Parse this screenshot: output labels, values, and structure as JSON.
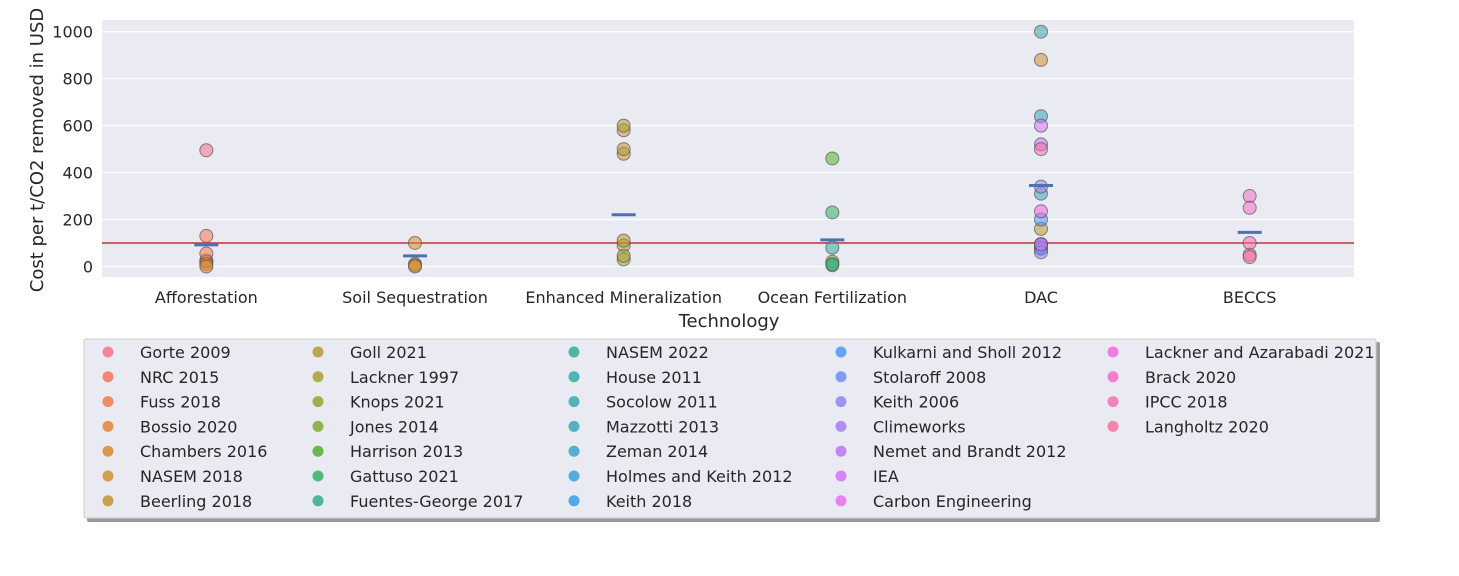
{
  "chart_data": {
    "type": "scatter",
    "title": "",
    "xlabel": "Technology",
    "ylabel": "Cost per t/CO2 removed in USD",
    "ylim": [
      -45,
      1050
    ],
    "yticks": [
      0,
      200,
      400,
      600,
      800,
      1000
    ],
    "grid": true,
    "legend_position": "bottom",
    "categories": [
      "Afforestation",
      "Soil Sequestration",
      "Enhanced Mineralization",
      "Ocean Fertilization",
      "DAC",
      "BECCS"
    ],
    "reference_line": {
      "y": 100,
      "color": "#c44e52"
    },
    "means": [
      {
        "category": "Afforestation",
        "value": 92
      },
      {
        "category": "Soil Sequestration",
        "value": 45
      },
      {
        "category": "Enhanced Mineralization",
        "value": 220
      },
      {
        "category": "Ocean Fertilization",
        "value": 113
      },
      {
        "category": "DAC",
        "value": 345
      },
      {
        "category": "BECCS",
        "value": 145
      }
    ],
    "mean_color": "#4c72b0",
    "series": [
      {
        "name": "Gorte 2009",
        "color": "#f77189",
        "points": [
          {
            "x": "Afforestation",
            "y": 495
          }
        ]
      },
      {
        "name": "NRC 2015",
        "color": "#f7745a",
        "points": [
          {
            "x": "Afforestation",
            "y": 130
          },
          {
            "x": "Afforestation",
            "y": 25
          }
        ]
      },
      {
        "name": "Fuss 2018",
        "color": "#f3794a",
        "points": [
          {
            "x": "Afforestation",
            "y": 20
          },
          {
            "x": "Afforestation",
            "y": 55
          }
        ]
      },
      {
        "name": "Bossio 2020",
        "color": "#e68332",
        "points": [
          {
            "x": "Afforestation",
            "y": 10
          },
          {
            "x": "Soil Sequestration",
            "y": 10
          }
        ]
      },
      {
        "name": "Chambers 2016",
        "color": "#db8a32",
        "points": [
          {
            "x": "Soil Sequestration",
            "y": 100
          },
          {
            "x": "Soil Sequestration",
            "y": 5
          }
        ]
      },
      {
        "name": "NASEM 2018",
        "color": "#cf9032",
        "points": [
          {
            "x": "Afforestation",
            "y": 0
          },
          {
            "x": "Soil Sequestration",
            "y": 0
          },
          {
            "x": "Enhanced Mineralization",
            "y": 580
          },
          {
            "x": "DAC",
            "y": 880
          }
        ]
      },
      {
        "name": "Beerling 2018",
        "color": "#c39532",
        "points": [
          {
            "x": "Enhanced Mineralization",
            "y": 480
          },
          {
            "x": "Enhanced Mineralization",
            "y": 90
          },
          {
            "x": "DAC",
            "y": 160
          }
        ]
      },
      {
        "name": "Goll 2021",
        "color": "#b69a31",
        "points": [
          {
            "x": "Enhanced Mineralization",
            "y": 500
          },
          {
            "x": "Enhanced Mineralization",
            "y": 110
          },
          {
            "x": "Enhanced Mineralization",
            "y": 30
          }
        ]
      },
      {
        "name": "Lackner 1997",
        "color": "#a8a031",
        "points": [
          {
            "x": "Enhanced Mineralization",
            "y": 600
          }
        ]
      },
      {
        "name": "Knops 2021",
        "color": "#97a531",
        "points": [
          {
            "x": "Enhanced Mineralization",
            "y": 45
          }
        ]
      },
      {
        "name": "Jones 2014",
        "color": "#7fab31",
        "points": [
          {
            "x": "Ocean Fertilization",
            "y": 20
          }
        ]
      },
      {
        "name": "Harrison 2013",
        "color": "#50b131",
        "points": [
          {
            "x": "Ocean Fertilization",
            "y": 460
          }
        ]
      },
      {
        "name": "Gattuso 2021",
        "color": "#32b166",
        "points": [
          {
            "x": "Ocean Fertilization",
            "y": 230
          },
          {
            "x": "Ocean Fertilization",
            "y": 5
          }
        ]
      },
      {
        "name": "Fuentes-George 2017",
        "color": "#34ae89",
        "points": [
          {
            "x": "Ocean Fertilization",
            "y": 10
          }
        ]
      },
      {
        "name": "NASEM 2022",
        "color": "#35ac9c",
        "points": [
          {
            "x": "Ocean Fertilization",
            "y": 80
          }
        ]
      },
      {
        "name": "House 2011",
        "color": "#36aaa8",
        "points": [
          {
            "x": "DAC",
            "y": 1000
          }
        ]
      },
      {
        "name": "Socolow 2011",
        "color": "#37a8b3",
        "points": [
          {
            "x": "DAC",
            "y": 640
          }
        ]
      },
      {
        "name": "Mazzotti 2013",
        "color": "#38a6be",
        "points": [
          {
            "x": "DAC",
            "y": 310
          }
        ]
      },
      {
        "name": "Zeman 2014",
        "color": "#39a4cb",
        "points": [
          {
            "x": "DAC",
            "y": 95
          }
        ]
      },
      {
        "name": "Holmes and Keith 2012",
        "color": "#3aa1d8",
        "points": [
          {
            "x": "DAC",
            "y": 75
          }
        ]
      },
      {
        "name": "Keith 2018",
        "color": "#3b9ee6",
        "points": [
          {
            "x": "DAC",
            "y": 94
          }
        ]
      },
      {
        "name": "Kulkarni and Sholl 2012",
        "color": "#4b96f3",
        "points": [
          {
            "x": "DAC",
            "y": 200
          }
        ]
      },
      {
        "name": "Stolaroff 2008",
        "color": "#6e8ef6",
        "points": [
          {
            "x": "DAC",
            "y": 80
          }
        ]
      },
      {
        "name": "Keith 2006",
        "color": "#8d85f5",
        "points": [
          {
            "x": "DAC",
            "y": 60
          }
        ]
      },
      {
        "name": "Climeworks",
        "color": "#a67df5",
        "points": [
          {
            "x": "DAC",
            "y": 340
          }
        ]
      },
      {
        "name": "Nemet and Brandt 2012",
        "color": "#bb76f4",
        "points": [
          {
            "x": "DAC",
            "y": 520
          }
        ]
      },
      {
        "name": "IEA",
        "color": "#d372f4",
        "points": [
          {
            "x": "DAC",
            "y": 600
          }
        ]
      },
      {
        "name": "Carbon Engineering",
        "color": "#e66ef4",
        "points": [
          {
            "x": "DAC",
            "y": 94
          }
        ]
      },
      {
        "name": "Lackner and Azarabadi 2021",
        "color": "#f26ae1",
        "points": [
          {
            "x": "DAC",
            "y": 235
          }
        ]
      },
      {
        "name": "Brack 2020",
        "color": "#f56cc7",
        "points": [
          {
            "x": "BECCS",
            "y": 300
          },
          {
            "x": "BECCS",
            "y": 250
          }
        ]
      },
      {
        "name": "IPCC 2018",
        "color": "#f66eb0",
        "points": [
          {
            "x": "DAC",
            "y": 500
          },
          {
            "x": "BECCS",
            "y": 100
          },
          {
            "x": "BECCS",
            "y": 50
          }
        ]
      },
      {
        "name": "Langholtz 2020",
        "color": "#f7709c",
        "points": [
          {
            "x": "BECCS",
            "y": 40
          }
        ]
      }
    ]
  }
}
